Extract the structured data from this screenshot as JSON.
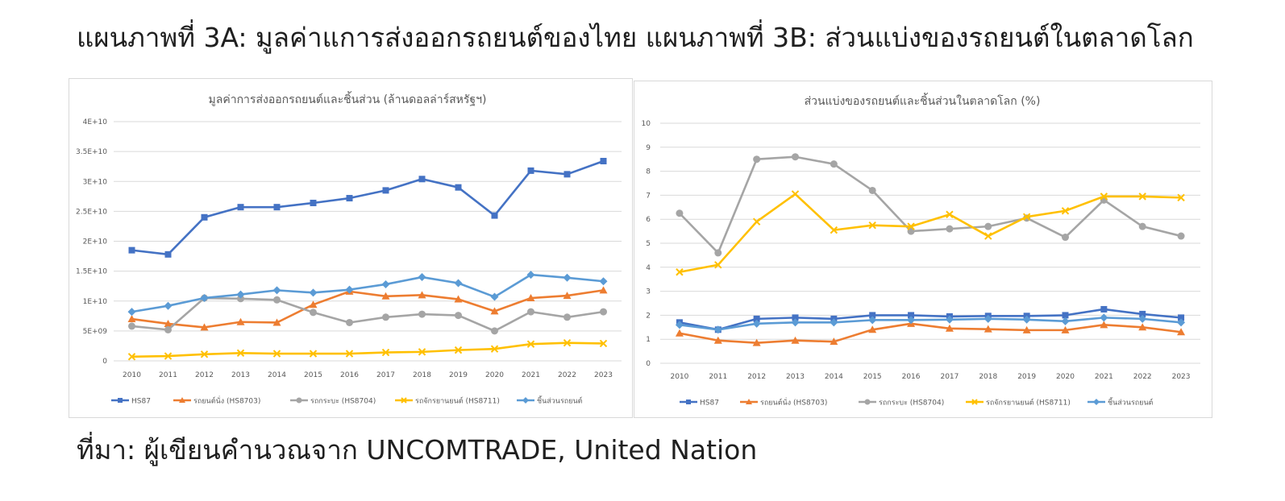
{
  "page": {
    "heading": "แผนภาพที่ 3A: มูลค่าแการส่งออกรถยนต์ของไทย แผนภาพที่ 3B: ส่วนแบ่งของรถยนต์ในตลาดโลก",
    "source": "ที่มา: ผู้เขียนคำนวณจาก UNCOMTRADE, United Nation"
  },
  "chart_data": [
    {
      "type": "line",
      "title": "มูลค่าการส่งออกรถยนต์และชิ้นส่วน (ล้านดอลล่าร์สหรัฐฯ)",
      "xlabel": "",
      "ylabel": "",
      "x": [
        "2010",
        "2011",
        "2012",
        "2013",
        "2014",
        "2015",
        "2016",
        "2017",
        "2018",
        "2019",
        "2020",
        "2021",
        "2022",
        "2023"
      ],
      "ylim": [
        0,
        40000000000
      ],
      "y_ticks": [
        0,
        5000000000,
        10000000000,
        15000000000,
        20000000000,
        25000000000,
        30000000000,
        35000000000,
        40000000000
      ],
      "y_tick_labels": [
        "0",
        "5E+09",
        "1E+10",
        "1.5E+10",
        "2E+10",
        "2.5E+10",
        "3E+10",
        "3.5E+10",
        "4E+10"
      ],
      "grid": true,
      "legend_position": "bottom",
      "series": [
        {
          "name": "HS87",
          "color": "#4472c4",
          "marker": "square",
          "values": [
            18500000000,
            17800000000,
            24000000000,
            25700000000,
            25700000000,
            26400000000,
            27200000000,
            28500000000,
            30400000000,
            29000000000,
            24300000000,
            31800000000,
            31200000000,
            33400000000
          ]
        },
        {
          "name": "รถยนต์นั่ง (HS8703)",
          "color": "#ed7d31",
          "marker": "triangle",
          "values": [
            7000000000,
            6200000000,
            5600000000,
            6500000000,
            6400000000,
            9400000000,
            11600000000,
            10800000000,
            11000000000,
            10300000000,
            8300000000,
            10500000000,
            10900000000,
            11800000000
          ]
        },
        {
          "name": "รถกระบะ (HS8704)",
          "color": "#a5a5a5",
          "marker": "circle",
          "values": [
            5800000000,
            5200000000,
            10500000000,
            10400000000,
            10200000000,
            8100000000,
            6400000000,
            7300000000,
            7800000000,
            7600000000,
            5000000000,
            8200000000,
            7300000000,
            8200000000
          ]
        },
        {
          "name": "รถจักรยานยนต์ (HS8711)",
          "color": "#ffc000",
          "marker": "x",
          "values": [
            700000000,
            800000000,
            1100000000,
            1300000000,
            1200000000,
            1200000000,
            1200000000,
            1400000000,
            1500000000,
            1800000000,
            2000000000,
            2800000000,
            3000000000,
            2900000000
          ]
        },
        {
          "name": "ชิ้นส่วนรถยนต์",
          "color": "#5b9bd5",
          "marker": "diamond",
          "values": [
            8200000000,
            9200000000,
            10500000000,
            11100000000,
            11800000000,
            11400000000,
            11900000000,
            12800000000,
            14000000000,
            13000000000,
            10700000000,
            14400000000,
            13900000000,
            13300000000
          ]
        }
      ]
    },
    {
      "type": "line",
      "title": "ส่วนแบ่งของรถยนต์และชิ้นส่วนในตลาดโลก (%)",
      "xlabel": "",
      "ylabel": "",
      "x": [
        "2010",
        "2011",
        "2012",
        "2013",
        "2014",
        "2015",
        "2016",
        "2017",
        "2018",
        "2019",
        "2020",
        "2021",
        "2022",
        "2023"
      ],
      "ylim": [
        0,
        10
      ],
      "y_ticks": [
        0,
        1,
        2,
        3,
        4,
        5,
        6,
        7,
        8,
        9,
        10
      ],
      "y_tick_labels": [
        "0",
        "1",
        "2",
        "3",
        "4",
        "5",
        "6",
        "7",
        "8",
        "9",
        "10"
      ],
      "grid": true,
      "legend_position": "bottom",
      "series": [
        {
          "name": "HS87",
          "color": "#4472c4",
          "marker": "square",
          "values": [
            1.7,
            1.4,
            1.85,
            1.9,
            1.85,
            2.0,
            2.0,
            1.95,
            1.97,
            1.97,
            2.0,
            2.25,
            2.05,
            1.9
          ]
        },
        {
          "name": "รถยนต์นั่ง (HS8703)",
          "color": "#ed7d31",
          "marker": "triangle",
          "values": [
            1.25,
            0.95,
            0.85,
            0.95,
            0.9,
            1.4,
            1.65,
            1.45,
            1.42,
            1.38,
            1.38,
            1.6,
            1.5,
            1.3
          ]
        },
        {
          "name": "รถกระบะ (HS8704)",
          "color": "#a5a5a5",
          "marker": "circle",
          "values": [
            6.25,
            4.6,
            8.5,
            8.6,
            8.3,
            7.2,
            5.5,
            5.6,
            5.7,
            6.05,
            5.25,
            6.8,
            5.7,
            5.3
          ]
        },
        {
          "name": "รถจักรยานยนต์ (HS8711)",
          "color": "#ffc000",
          "marker": "x",
          "values": [
            3.8,
            4.1,
            5.9,
            7.05,
            5.55,
            5.75,
            5.7,
            6.2,
            5.3,
            6.1,
            6.35,
            6.95,
            6.95,
            6.9
          ]
        },
        {
          "name": "ชิ้นส่วนรถยนต์",
          "color": "#5b9bd5",
          "marker": "diamond",
          "values": [
            1.6,
            1.4,
            1.65,
            1.7,
            1.7,
            1.8,
            1.8,
            1.82,
            1.85,
            1.82,
            1.75,
            1.9,
            1.85,
            1.7
          ]
        }
      ]
    }
  ]
}
